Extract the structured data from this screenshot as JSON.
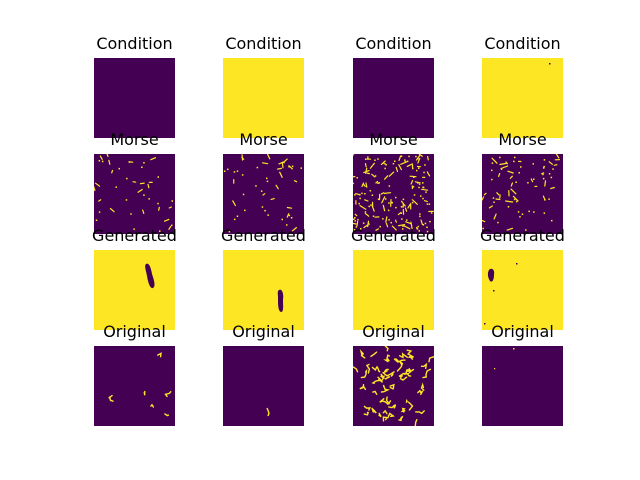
{
  "figure": {
    "colors": {
      "low": "#440154",
      "high": "#fde725",
      "background": "#ffffff"
    },
    "rows": [
      {
        "title": "Condition",
        "panels": [
          {
            "background": "dark",
            "content": "uniform"
          },
          {
            "background": "bright",
            "content": "uniform"
          },
          {
            "background": "dark",
            "content": "uniform"
          },
          {
            "background": "bright",
            "content": "uniform, one dark speck"
          }
        ]
      },
      {
        "title": "Morse",
        "panels": [
          {
            "background": "dark",
            "content": "sparse bright specks"
          },
          {
            "background": "dark",
            "content": "sparse bright specks"
          },
          {
            "background": "dark",
            "content": "dense bright speckles"
          },
          {
            "background": "dark",
            "content": "moderate bright specks"
          }
        ]
      },
      {
        "title": "Generated",
        "panels": [
          {
            "background": "bright",
            "content": "one dark elongated blob"
          },
          {
            "background": "bright",
            "content": "one dark elongated blob"
          },
          {
            "background": "bright",
            "content": "uniform"
          },
          {
            "background": "bright",
            "content": "small dark blob and specks"
          }
        ]
      },
      {
        "title": "Original",
        "panels": [
          {
            "background": "dark",
            "content": "few thin bright strokes"
          },
          {
            "background": "dark",
            "content": "one thin bright stroke"
          },
          {
            "background": "dark",
            "content": "many bright curved strokes"
          },
          {
            "background": "dark",
            "content": "very few bright specks"
          }
        ]
      }
    ]
  }
}
